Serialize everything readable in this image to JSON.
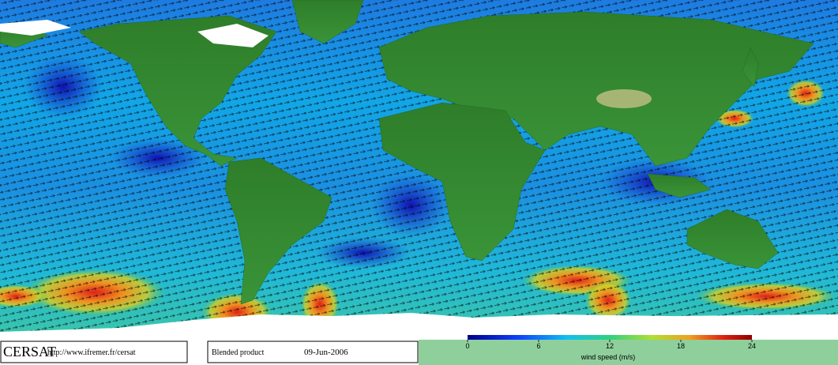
{
  "footer": {
    "logo": "CERSAT",
    "url": "http://www.ifremer.fr/cersat",
    "product": "Blended product",
    "date": "09-Jun-2006"
  },
  "colorbar": {
    "label": "wind speed (m/s)",
    "range": [
      0,
      24
    ],
    "ticks": [
      0,
      6,
      12,
      18,
      24
    ]
  }
}
